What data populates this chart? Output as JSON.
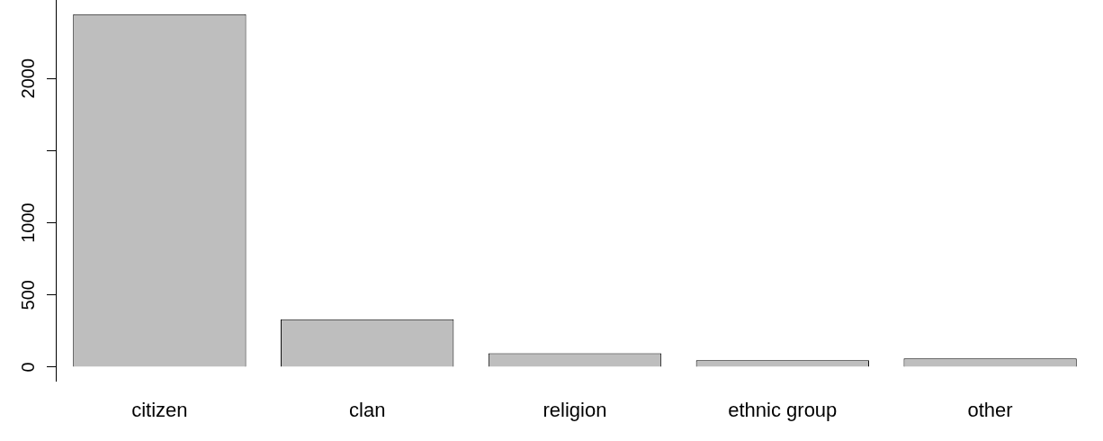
{
  "chart_data": {
    "type": "bar",
    "categories": [
      "citizen",
      "clan",
      "religion",
      "ethnic group",
      "other"
    ],
    "values": [
      2446,
      331,
      96,
      48,
      60
    ],
    "color": "#bebebe",
    "ylim": [
      -98,
      2544
    ],
    "yticks": [
      0,
      500,
      1000,
      {
        "value": 1500,
        "label": null
      },
      2000
    ],
    "grid": false,
    "legend": false
  }
}
